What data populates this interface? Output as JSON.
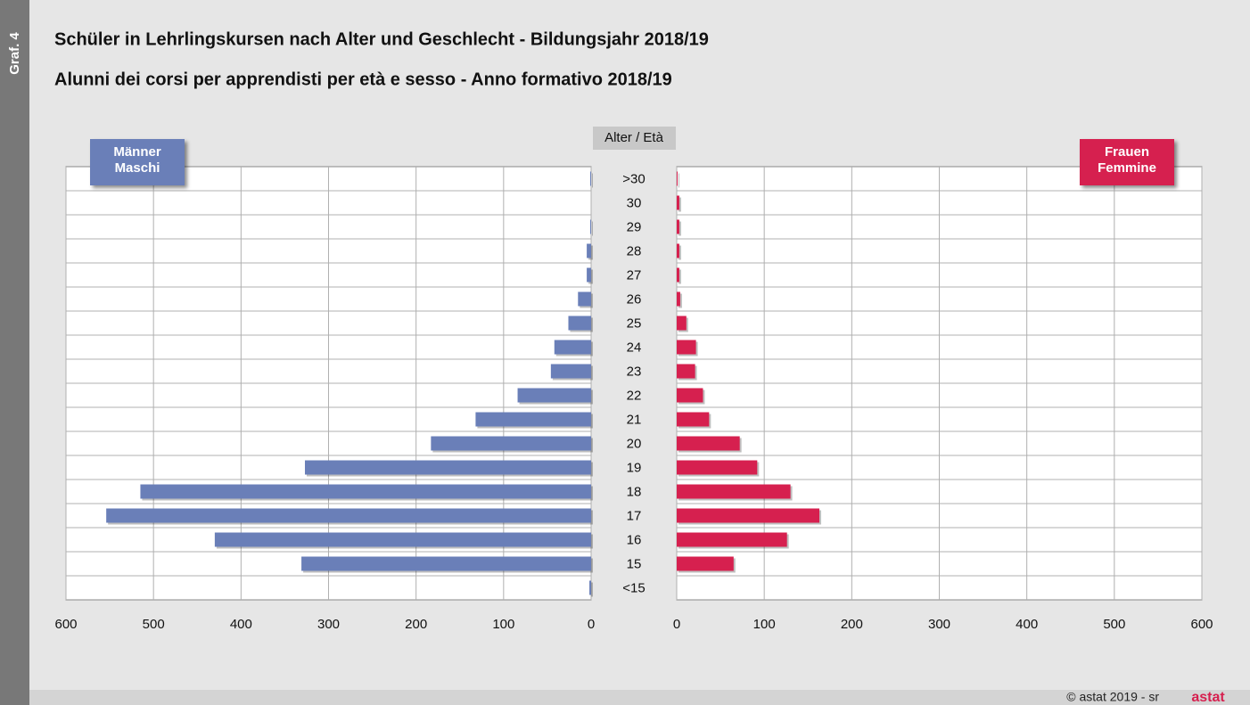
{
  "chart_data": {
    "type": "pyramid",
    "side_label": "Graf. 4",
    "title": "Schüler in Lehrlingskursen nach Alter und Geschlecht - Bildungsjahr 2018/19",
    "subtitle": "Alunni dei corsi per apprendisti per età e sesso - Anno formativo 2018/19",
    "category_axis_label": "Alter / Età",
    "categories": [
      ">30",
      "30",
      "29",
      "28",
      "27",
      "26",
      "25",
      "24",
      "23",
      "22",
      "21",
      "20",
      "19",
      "18",
      "17",
      "16",
      "15",
      "<15"
    ],
    "series": [
      {
        "name": "Männer\nMaschi",
        "color": "#6a7fb8",
        "values": [
          1,
          0,
          1,
          5,
          5,
          15,
          26,
          42,
          46,
          84,
          132,
          183,
          327,
          515,
          554,
          430,
          331,
          2
        ]
      },
      {
        "name": "Frauen\nFemmine",
        "color": "#d6204f",
        "values": [
          1,
          3,
          3,
          3,
          3,
          4,
          11,
          22,
          21,
          30,
          37,
          72,
          92,
          130,
          163,
          126,
          65,
          0
        ]
      }
    ],
    "xlim": [
      0,
      600
    ],
    "xticks": [
      0,
      100,
      200,
      300,
      400,
      500,
      600
    ],
    "grid": true,
    "footer": "© astat 2019 - sr",
    "logo": "astat"
  }
}
